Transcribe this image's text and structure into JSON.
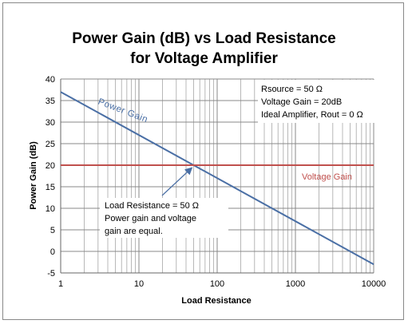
{
  "chart_data": {
    "type": "line",
    "title_line1": "Power Gain (dB) vs Load Resistance",
    "title_line2": "for Voltage Amplifier",
    "xlabel": "Load Resistance",
    "ylabel": "Power Gain (dB)",
    "x_scale": "log",
    "xlim": [
      1,
      10000
    ],
    "ylim": [
      -5,
      40
    ],
    "x_ticks": [
      "1",
      "10",
      "100",
      "1000",
      "10000"
    ],
    "y_ticks": [
      "-5",
      "0",
      "5",
      "10",
      "15",
      "20",
      "25",
      "30",
      "35",
      "40"
    ],
    "grid": true,
    "series": [
      {
        "name": "Power Gain",
        "color": "#4a6fa5",
        "x": [
          1,
          10000
        ],
        "y": [
          37,
          -3
        ]
      },
      {
        "name": "Voltage Gain",
        "color": "#c0504d",
        "x": [
          1,
          10000
        ],
        "y": [
          20,
          20
        ]
      }
    ],
    "annotations": {
      "params": [
        "Rsource = 50 Ω",
        "Voltage Gain = 20dB",
        "Ideal Amplifier, Rout = 0 Ω"
      ],
      "callout": [
        "Load Resistance = 50 Ω",
        "Power gain and voltage",
        "gain are equal."
      ],
      "callout_target": {
        "x": 50,
        "y": 20
      }
    }
  }
}
